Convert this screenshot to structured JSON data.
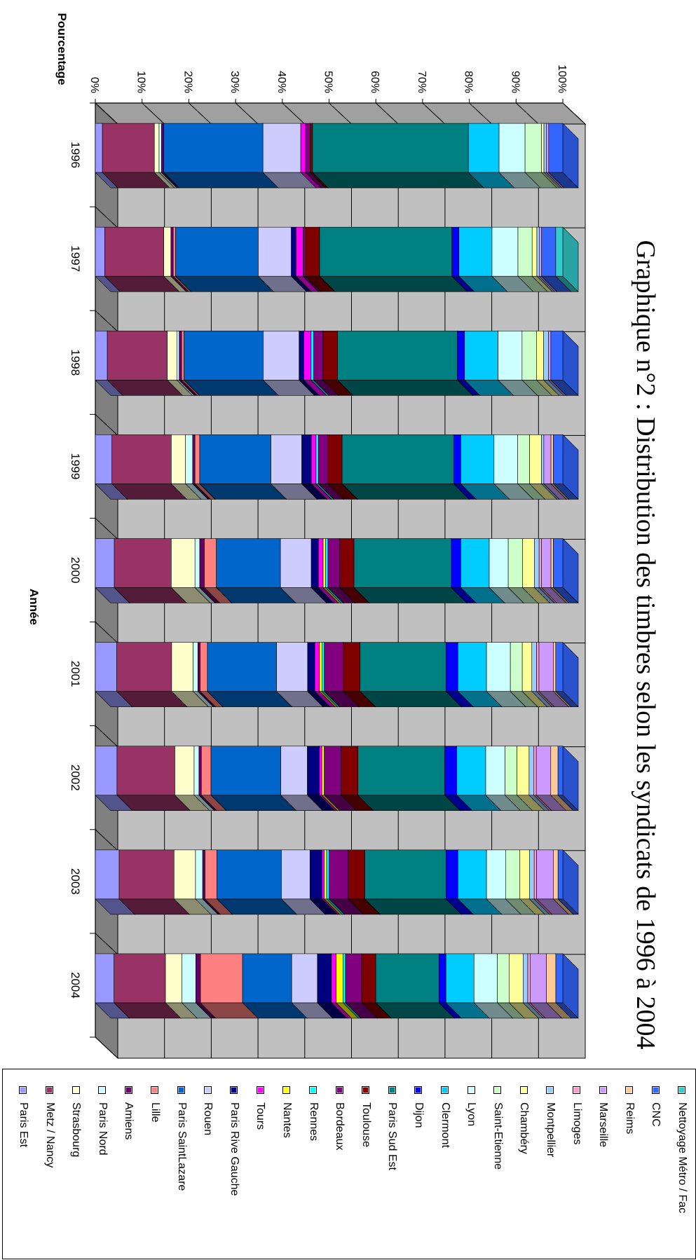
{
  "chart_data": {
    "type": "bar",
    "stacked": "100%",
    "three_d": true,
    "title": "Graphique n°2 : Distribution des timbres selon les syndicats de 1996 à 2004",
    "xlabel": "Année",
    "ylabel": "Pourcentage",
    "ylim": [
      0,
      100
    ],
    "yticks": [
      "0%",
      "10%",
      "20%",
      "30%",
      "40%",
      "50%",
      "60%",
      "70%",
      "80%",
      "90%",
      "100%"
    ],
    "grid": true,
    "legend_position": "right",
    "categories": [
      "1996",
      "1997",
      "1998",
      "1999",
      "2000",
      "2001",
      "2002",
      "2003",
      "2004"
    ],
    "series": [
      {
        "name": "Paris Est",
        "color": "#9999FF",
        "values": [
          1.5,
          2,
          2.5,
          3.5,
          4,
          4.5,
          4.5,
          5,
          4
        ]
      },
      {
        "name": "Metz / Nancy",
        "color": "#993366",
        "values": [
          11,
          12.5,
          12.5,
          12.5,
          12,
          11.5,
          12,
          11.5,
          11
        ]
      },
      {
        "name": "Strasbourg",
        "color": "#FFFFCC",
        "values": [
          1,
          1.5,
          2,
          3,
          5,
          4.5,
          4,
          4.5,
          3.5
        ]
      },
      {
        "name": "Paris Nord",
        "color": "#CCFFFF",
        "values": [
          0.5,
          0,
          0.5,
          1.5,
          1,
          1,
          1,
          1.5,
          3
        ]
      },
      {
        "name": "Amiens",
        "color": "#660066",
        "values": [
          0.5,
          0.5,
          0.5,
          0.5,
          1,
          0.5,
          0.5,
          0.5,
          1
        ]
      },
      {
        "name": "Lille",
        "color": "#FF8080",
        "values": [
          0,
          0.5,
          0.5,
          1,
          2.5,
          1.5,
          2,
          2.5,
          9
        ]
      },
      {
        "name": "Paris SaintLazare",
        "color": "#0066CC",
        "values": [
          21,
          17.5,
          16.5,
          15,
          13.5,
          14.5,
          14.5,
          13.5,
          10.5
        ]
      },
      {
        "name": "Rouen",
        "color": "#CCCCFF",
        "values": [
          8,
          7,
          7.5,
          6.5,
          6.5,
          6.5,
          5.5,
          6,
          5.5
        ]
      },
      {
        "name": "Paris Rive Gauche",
        "color": "#000080",
        "values": [
          0,
          1,
          1,
          2,
          1.5,
          1.5,
          2.5,
          2.5,
          3
        ]
      },
      {
        "name": "Tours",
        "color": "#FF00FF",
        "values": [
          1,
          1.5,
          1.5,
          1,
          1,
          1,
          0.5,
          0.5,
          1
        ]
      },
      {
        "name": "Nantes",
        "color": "#FFFF00",
        "values": [
          0,
          0,
          0,
          0,
          0.5,
          0.5,
          0.5,
          0.5,
          1.5
        ]
      },
      {
        "name": "Rennes",
        "color": "#00FFFF",
        "values": [
          0,
          0,
          0.5,
          0.5,
          0.5,
          0.5,
          0,
          0.5,
          0.5
        ]
      },
      {
        "name": "Bordeaux",
        "color": "#800080",
        "values": [
          1,
          0.5,
          2,
          2,
          2.5,
          4,
          3.5,
          4,
          3.5
        ]
      },
      {
        "name": "Toulouse",
        "color": "#800000",
        "values": [
          0.5,
          3,
          3,
          3,
          3,
          3.5,
          3.5,
          3.5,
          3
        ]
      },
      {
        "name": "Paris Sud Est",
        "color": "#008080",
        "values": [
          33,
          28,
          25,
          23.5,
          20.5,
          18,
          18,
          17,
          13.5
        ]
      },
      {
        "name": "Dijon",
        "color": "#0000FF",
        "values": [
          0,
          1.5,
          1.5,
          1.5,
          2,
          2.5,
          2.5,
          2.5,
          1.5
        ]
      },
      {
        "name": "Clermont",
        "color": "#00CCFF",
        "values": [
          6.5,
          7,
          7,
          7,
          6,
          6,
          6,
          6,
          6
        ]
      },
      {
        "name": "Lyon",
        "color": "#CCFFFF",
        "values": [
          5.5,
          5.5,
          5,
          5,
          4,
          5,
          4,
          4,
          5
        ]
      },
      {
        "name": "Saint-Etienne",
        "color": "#CCFFCC",
        "values": [
          3.5,
          3,
          3,
          2.5,
          3,
          2.5,
          2.5,
          3,
          2.5
        ]
      },
      {
        "name": "Chambéry",
        "color": "#FFFF99",
        "values": [
          0.5,
          1,
          1.5,
          2.5,
          2.5,
          2,
          2.5,
          2,
          3
        ]
      },
      {
        "name": "Montpellier",
        "color": "#99CCFF",
        "values": [
          0.5,
          0.5,
          1,
          0.5,
          1,
          1,
          1,
          1,
          1
        ]
      },
      {
        "name": "Limoges",
        "color": "#FF99CC",
        "values": [
          0,
          0,
          0,
          0,
          0.5,
          0.5,
          0.5,
          0.5,
          0.5
        ]
      },
      {
        "name": "Marseille",
        "color": "#CC99FF",
        "values": [
          0.5,
          0.5,
          0.5,
          1.5,
          2,
          3,
          3,
          3.5,
          3.5
        ]
      },
      {
        "name": "Reims",
        "color": "#FFCC99",
        "values": [
          0,
          0,
          0,
          0.5,
          0.5,
          0.5,
          1.5,
          1,
          2
        ]
      },
      {
        "name": "CNC",
        "color": "#3366FF",
        "values": [
          3,
          3,
          2.5,
          2,
          2,
          1.5,
          1,
          1,
          1.5
        ]
      },
      {
        "name": "Nettoyage Métro / Fac",
        "color": "#33CCCC",
        "values": [
          0,
          1.5,
          0,
          0,
          0,
          0,
          0,
          0,
          0
        ]
      }
    ]
  }
}
